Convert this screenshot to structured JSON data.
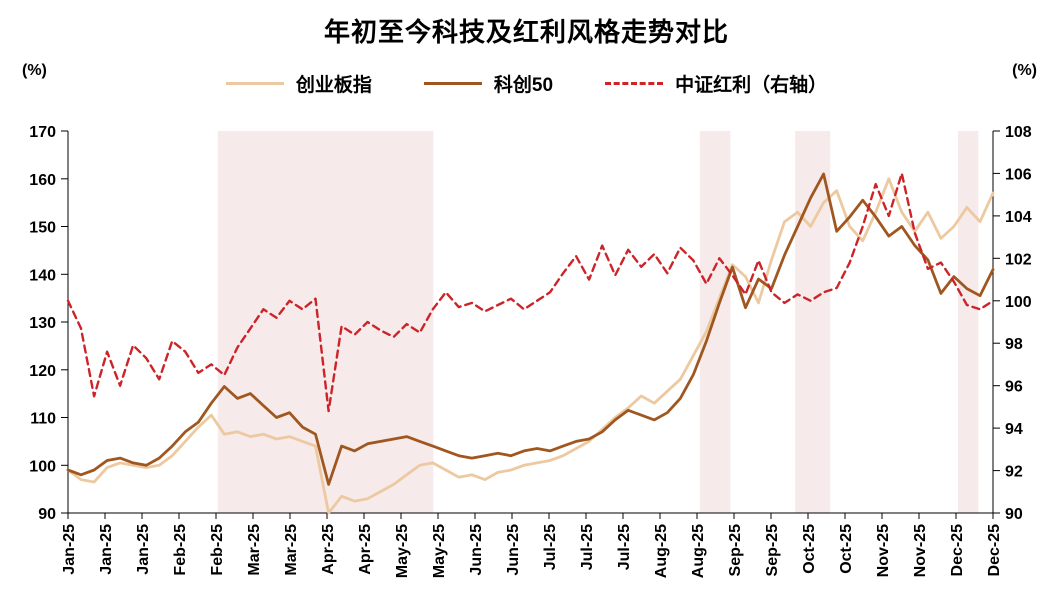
{
  "chart_data": {
    "type": "line",
    "title": "年初至今科技及红利风格走势对比",
    "left_axis_unit": "(%)",
    "right_axis_unit": "(%)",
    "left_axis": {
      "min": 90,
      "max": 170,
      "ticks": [
        170,
        160,
        150,
        140,
        130,
        120,
        110,
        100,
        90
      ]
    },
    "right_axis": {
      "min": 90,
      "max": 108,
      "ticks": [
        108,
        106,
        104,
        102,
        100,
        98,
        96,
        94,
        92,
        90
      ]
    },
    "x_labels": [
      "Jan-25",
      "Jan-25",
      "Jan-25",
      "Feb-25",
      "Feb-25",
      "Mar-25",
      "Mar-25",
      "Apr-25",
      "Apr-25",
      "May-25",
      "May-25",
      "Jun-25",
      "Jun-25",
      "Jul-25",
      "Jul-25",
      "Jul-25",
      "Aug-25",
      "Aug-25",
      "Sep-25",
      "Sep-25",
      "Oct-25",
      "Oct-25",
      "Nov-25",
      "Nov-25",
      "Dec-25",
      "Dec-25"
    ],
    "band_color": "#f6eaea",
    "shaded_bands": [
      {
        "x0": 0.162,
        "x1": 0.395
      },
      {
        "x0": 0.683,
        "x1": 0.716
      },
      {
        "x0": 0.786,
        "x1": 0.824
      },
      {
        "x0": 0.962,
        "x1": 0.984
      }
    ],
    "series": [
      {
        "name": "创业板指",
        "axis": "left",
        "color": "#ecc9a0",
        "dash": null,
        "values": [
          99,
          97,
          96.5,
          99.5,
          100.5,
          100,
          99.5,
          100,
          102,
          105,
          108,
          110.5,
          106.5,
          107,
          106,
          106.5,
          105.5,
          106,
          105,
          104,
          90,
          93.5,
          92.5,
          93,
          94.5,
          96,
          98,
          100,
          100.5,
          99,
          97.5,
          98,
          97,
          98.5,
          99,
          100,
          100.5,
          101,
          102,
          103.5,
          105,
          107.5,
          110,
          112,
          114.5,
          113,
          115.5,
          118,
          123,
          128,
          135,
          142,
          139.5,
          134,
          143,
          151,
          153,
          150,
          155,
          157.5,
          150,
          147,
          153,
          160,
          153,
          149,
          153,
          147.5,
          150,
          154,
          151,
          157
        ]
      },
      {
        "name": "科创50",
        "axis": "left",
        "color": "#a0571f",
        "dash": null,
        "values": [
          99,
          98,
          99,
          101,
          101.5,
          100.5,
          100,
          101.5,
          104,
          107,
          109,
          113,
          116.5,
          114,
          115,
          112.5,
          110,
          111,
          108,
          106.5,
          96,
          104,
          103,
          104.5,
          105,
          105.5,
          106,
          105,
          104,
          103,
          102,
          101.5,
          102,
          102.5,
          102,
          103,
          103.5,
          103,
          104,
          105,
          105.5,
          107,
          109.5,
          111.5,
          110.5,
          109.5,
          111,
          114,
          119,
          126,
          134,
          141.5,
          133,
          139,
          137,
          144,
          150,
          156,
          161,
          149,
          152,
          155.5,
          152,
          148,
          150,
          146,
          143,
          136,
          139.5,
          137,
          135.5,
          141
        ]
      },
      {
        "name": "中证红利（右轴）",
        "axis": "right",
        "color": "#cc2428",
        "dash": "7 5",
        "values": [
          100,
          98.7,
          95.5,
          97.6,
          96,
          97.9,
          97.3,
          96.3,
          98.1,
          97.6,
          96.6,
          97,
          96.5,
          97.8,
          98.7,
          99.6,
          99.2,
          100,
          99.6,
          100.1,
          94.8,
          98.8,
          98.4,
          99,
          98.6,
          98.3,
          98.9,
          98.5,
          99.6,
          100.4,
          99.7,
          99.9,
          99.5,
          99.8,
          100.1,
          99.6,
          100,
          100.4,
          101.3,
          102.1,
          101,
          102.6,
          101.2,
          102.4,
          101.6,
          102.2,
          101.3,
          102.5,
          101.9,
          100.8,
          102,
          101.2,
          100.3,
          101.9,
          100.4,
          99.9,
          100.3,
          100,
          100.4,
          100.6,
          101.8,
          103.5,
          105.5,
          104,
          106,
          103.2,
          101.5,
          101.8,
          100.9,
          99.8,
          99.6,
          100
        ]
      }
    ]
  }
}
